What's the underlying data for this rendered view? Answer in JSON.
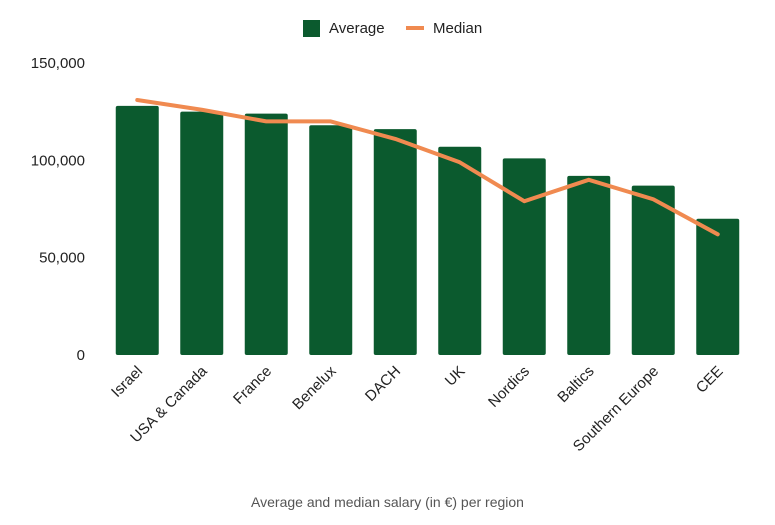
{
  "chart_data": {
    "type": "bar",
    "categories": [
      "Israel",
      "USA & Canada",
      "France",
      "Benelux",
      "DACH",
      "UK",
      "Nordics",
      "Baltics",
      "Southern Europe",
      "CEE"
    ],
    "series": [
      {
        "name": "Average",
        "type": "bar",
        "color": "#0b5a2e",
        "values": [
          128000,
          125000,
          124000,
          118000,
          116000,
          107000,
          101000,
          92000,
          87000,
          70000
        ]
      },
      {
        "name": "Median",
        "type": "line",
        "color": "#f08a50",
        "values": [
          131000,
          126000,
          120000,
          120000,
          111000,
          99000,
          79000,
          90000,
          80000,
          62000
        ]
      }
    ],
    "ylim": [
      0,
      150000
    ],
    "yticks": [
      0,
      50000,
      100000,
      150000
    ],
    "ytick_labels": [
      "0",
      "50,000",
      "100,000",
      "150,000"
    ],
    "grid": false,
    "legend_position": "top-center",
    "caption": "Average and median salary (in €) per region"
  }
}
